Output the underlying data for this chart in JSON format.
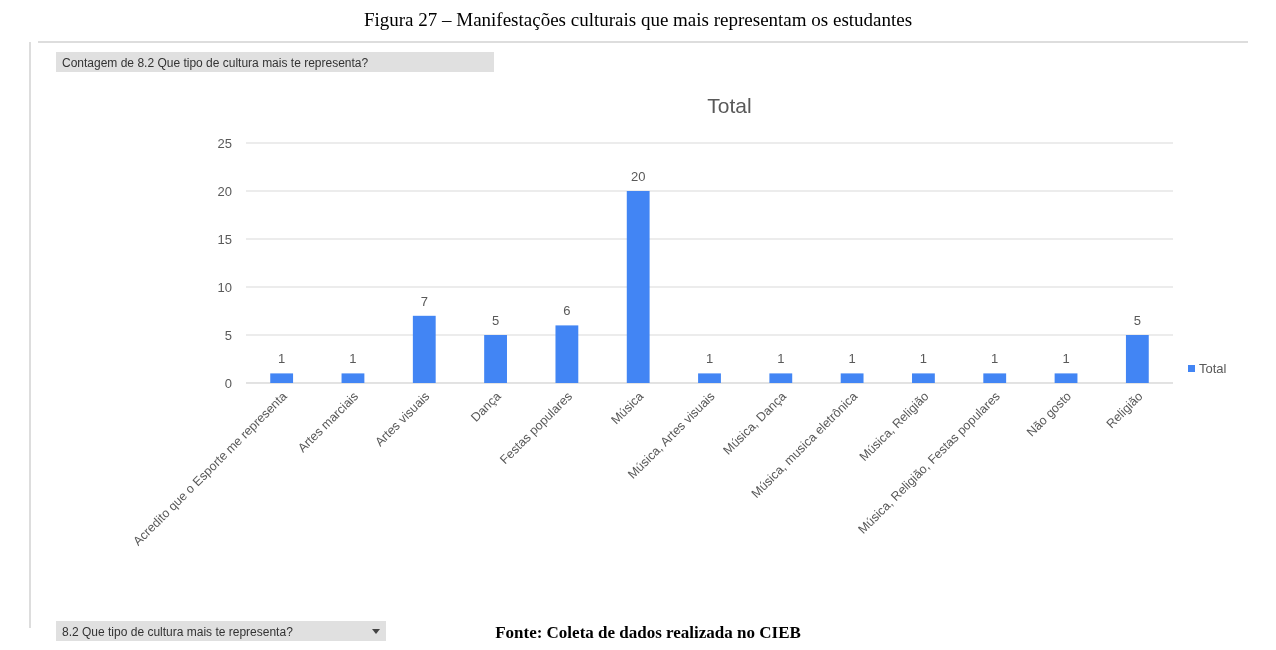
{
  "chart_data": {
    "type": "bar",
    "title": "Total",
    "annotations": [
      "Figura 27 – Manifestações culturais que mais representam os estudantes",
      "Contagem de 8.2 Que tipo de cultura mais te representa?",
      "8.2 Que tipo de cultura mais te representa?",
      "Fonte: Coleta de dados realizada no CIEB"
    ],
    "categories": [
      "Acredito que o Esporte me representa",
      "Artes marciais",
      "Artes visuais",
      "Dança",
      "Festas populares",
      "Música",
      "Música, Artes visuais",
      "Música, Dança",
      "Música, musica eletrônica",
      "Música, Religião",
      "Música, Religião, Festas populares",
      "Não gosto",
      "Religião"
    ],
    "series": [
      {
        "name": "Total",
        "color": "#4285f4",
        "values": [
          1,
          1,
          7,
          5,
          6,
          20,
          1,
          1,
          1,
          1,
          1,
          1,
          5
        ]
      }
    ],
    "ylim": [
      0,
      25
    ],
    "yticks": [
      0,
      5,
      10,
      15,
      20,
      25
    ],
    "grid": "y",
    "data_labels": true,
    "legend": "right"
  }
}
